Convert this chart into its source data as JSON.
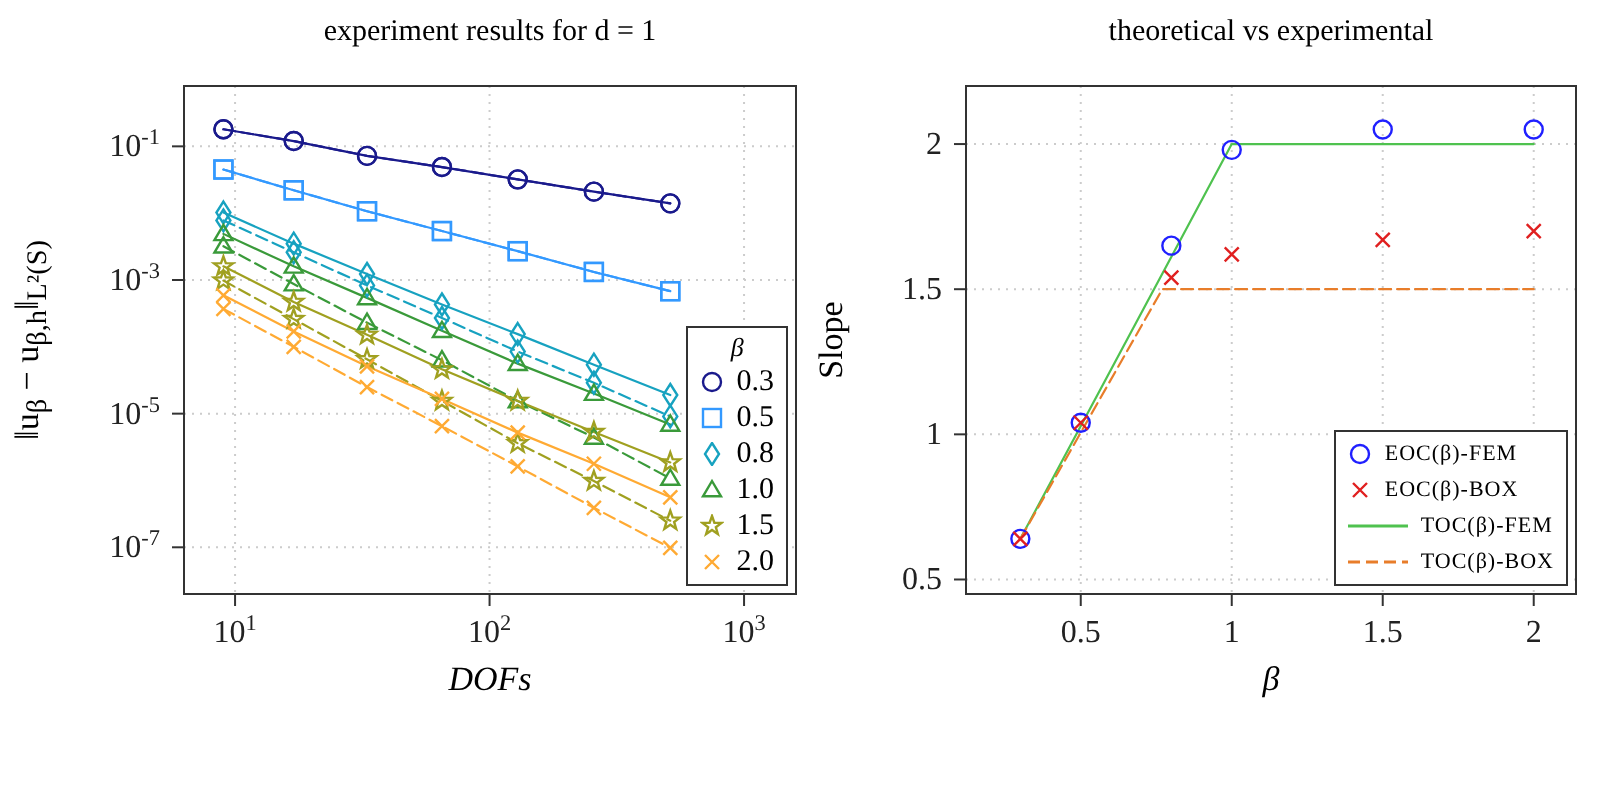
{
  "chart_data": [
    {
      "type": "line",
      "title": "experiment results for d = 1",
      "xlabel": "DOFs",
      "ylabel": "‖u$_{β}$ − u$_{β,h}$‖$_{L²(S)}$",
      "legend_title": "β",
      "x": [
        9,
        17,
        33,
        65,
        129,
        257,
        513
      ],
      "series": [
        {
          "name": "0.3",
          "color": "#1a1a8c",
          "marker": "circle",
          "line_style": "solid",
          "values": [
            0.18,
            0.12,
            0.072,
            0.049,
            0.032,
            0.021,
            0.014
          ]
        },
        {
          "color": "#1a1a8c",
          "marker": "circle",
          "line_style": "dashed",
          "values": [
            0.18,
            0.12,
            0.072,
            0.049,
            0.032,
            0.021,
            0.014
          ]
        },
        {
          "name": "0.5",
          "color": "#3399ff",
          "marker": "square",
          "line_style": "solid",
          "values": [
            0.045,
            0.022,
            0.0107,
            0.0054,
            0.0027,
            0.00132,
            0.00068
          ]
        },
        {
          "color": "#3399ff",
          "marker": "square",
          "line_style": "dashed",
          "values": [
            0.045,
            0.022,
            0.0107,
            0.0054,
            0.0027,
            0.00132,
            0.00068
          ]
        },
        {
          "name": "0.8",
          "color": "#17a2c0",
          "marker": "diamond",
          "line_style": "solid",
          "values": [
            0.0102,
            0.0035,
            0.00123,
            0.00043,
            0.000155,
            5.4e-05,
            1.9e-05
          ]
        },
        {
          "color": "#17a2c0",
          "marker": "diamond",
          "line_style": "dashed",
          "values": [
            0.0078,
            0.0026,
            0.00083,
            0.00027,
            8.5e-05,
            2.9e-05,
            9.1e-06
          ]
        },
        {
          "name": "1.0",
          "color": "#3a9a3a",
          "marker": "triangle",
          "line_style": "solid",
          "values": [
            0.0049,
            0.0016,
            0.00054,
            0.000174,
            5.6e-05,
            2e-05,
            6.9e-06
          ]
        },
        {
          "color": "#3a9a3a",
          "marker": "triangle",
          "line_style": "dashed",
          "values": [
            0.0032,
            0.00087,
            0.00023,
            6.3e-05,
            1.55e-05,
            4.4e-06,
            1.07e-06
          ]
        },
        {
          "name": "1.5",
          "color": "#a0a020",
          "marker": "star",
          "line_style": "solid",
          "values": [
            0.0016,
            0.00047,
            0.000151,
            4.6e-05,
            1.55e-05,
            5.3e-06,
            1.86e-06
          ]
        },
        {
          "color": "#a0a020",
          "marker": "star",
          "line_style": "dashed",
          "values": [
            0.00098,
            0.00026,
            6.5e-05,
            1.55e-05,
            3.6e-06,
            9.8e-07,
            2.5e-07
          ]
        },
        {
          "name": "2.0",
          "color": "#ffaa33",
          "marker": "cross",
          "line_style": "solid",
          "values": [
            0.00059,
            0.00017,
            5.1e-05,
            1.66e-05,
            5.2e-06,
            1.78e-06,
            5.6e-07
          ]
        },
        {
          "color": "#ffaa33",
          "marker": "cross",
          "line_style": "dashed",
          "values": [
            0.00037,
            0.0001,
            2.5e-05,
            6.5e-06,
            1.62e-06,
            3.9e-07,
            9.8e-08
          ]
        }
      ],
      "log": "xy",
      "xlim": [
        6.3,
        1600
      ],
      "ylim": [
        2e-08,
        0.8
      ],
      "xticks": [
        {
          "value": 10,
          "label": "10$^{1}$"
        },
        {
          "value": 100,
          "label": "10$^{2}$"
        },
        {
          "value": 1000,
          "label": "10$^{3}$"
        }
      ],
      "yticks": [
        {
          "value": 1e-07,
          "label": "10$^{-7}$"
        },
        {
          "value": 1e-05,
          "label": "10$^{-5}$"
        },
        {
          "value": 0.001,
          "label": "10$^{-3}$"
        },
        {
          "value": 0.1,
          "label": "10$^{-1}$"
        }
      ],
      "grid": true,
      "legend": "bottom right"
    },
    {
      "type": "scatter",
      "title": "theoretical vs experimental",
      "xlabel": "β",
      "ylabel": "Slope",
      "series": [
        {
          "name": "EOC(β)-FEM",
          "color": "#2020ff",
          "marker": "circle",
          "x": [
            0.3,
            0.5,
            0.8,
            1,
            1.5,
            2
          ],
          "values": [
            0.64,
            1.04,
            1.65,
            1.98,
            2.05,
            2.05
          ]
        },
        {
          "name": "EOC(β)-BOX",
          "color": "#e02020",
          "marker": "cross",
          "x": [
            0.3,
            0.5,
            0.8,
            1,
            1.5,
            2
          ],
          "values": [
            0.64,
            1.04,
            1.54,
            1.62,
            1.67,
            1.7
          ]
        },
        {
          "name": "TOC(β)-FEM",
          "type": "line",
          "color": "#4fc24f",
          "line_style": "solid",
          "x": [
            0.3,
            1,
            2
          ],
          "values": [
            0.64,
            2,
            2
          ]
        },
        {
          "name": "TOC(β)-BOX",
          "type": "line",
          "color": "#e87d2a",
          "line_style": "dashed",
          "x": [
            0.3,
            0.77,
            2
          ],
          "values": [
            0.64,
            1.5,
            1.5
          ]
        }
      ],
      "xlim": [
        0.12,
        2.14
      ],
      "ylim": [
        0.45,
        2.2
      ],
      "xticks": [
        0.5,
        1,
        1.5,
        2
      ],
      "yticks": [
        0.5,
        1,
        1.5,
        2
      ],
      "grid": true,
      "legend": "bottom right"
    }
  ]
}
